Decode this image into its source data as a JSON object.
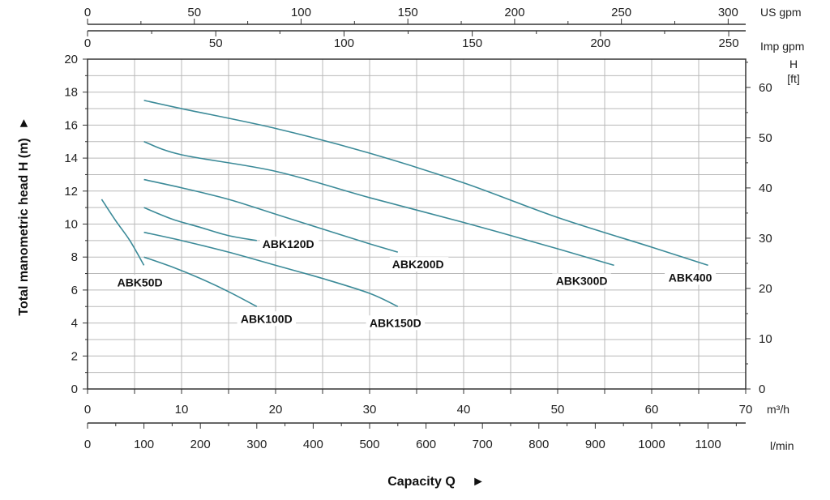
{
  "chart_data": {
    "type": "line",
    "x_unit": "m³/h",
    "xlim": [
      0,
      70
    ],
    "x_ticks": [
      0,
      10,
      20,
      30,
      40,
      50,
      60,
      70
    ],
    "y_unit": "m",
    "ylim": [
      0,
      20
    ],
    "y_ticks": [
      0,
      2,
      4,
      6,
      8,
      10,
      12,
      14,
      16,
      18,
      20
    ],
    "grid": true,
    "ylabel": "Total manometric head H (m)",
    "ylabel_arrow": "►",
    "xlabel": "Capacity Q",
    "xlabel_arrow": "►",
    "secondary_axes": {
      "top1": {
        "unit": "US gpm",
        "ticks": [
          0,
          50,
          100,
          150,
          200,
          250,
          300
        ],
        "per_m3h": 4.403
      },
      "top2": {
        "unit": "Imp gpm",
        "ticks": [
          0,
          50,
          100,
          150,
          200,
          250
        ],
        "per_m3h": 3.666
      },
      "bottom2": {
        "unit": "l/min",
        "ticks": [
          0,
          100,
          200,
          300,
          400,
          500,
          600,
          700,
          800,
          900,
          1000,
          1100
        ],
        "per_m3h": 16.667
      },
      "right": {
        "unit_line1": "H",
        "unit_line2": "[ft]",
        "ticks": [
          0,
          10,
          20,
          30,
          40,
          50,
          60
        ],
        "per_m": 3.281
      }
    },
    "curve_color": "#3b8a98",
    "series": [
      {
        "name": "ABK50D",
        "x": [
          1.5,
          3,
          4.5,
          6.0
        ],
        "y": [
          11.5,
          10.2,
          9.0,
          7.5
        ]
      },
      {
        "name": "ABK100D",
        "x": [
          6,
          9,
          12,
          15,
          18
        ],
        "y": [
          8.0,
          7.4,
          6.7,
          5.9,
          5.0
        ]
      },
      {
        "name": "ABK120D",
        "x": [
          6,
          9,
          12,
          15,
          18
        ],
        "y": [
          11.0,
          10.3,
          9.8,
          9.3,
          9.0
        ]
      },
      {
        "name": "ABK150D",
        "x": [
          6,
          10,
          15,
          20,
          25,
          30,
          33
        ],
        "y": [
          9.5,
          9.0,
          8.3,
          7.5,
          6.7,
          5.8,
          5.0
        ]
      },
      {
        "name": "ABK200D",
        "x": [
          6,
          10,
          15,
          20,
          25,
          30,
          33
        ],
        "y": [
          12.7,
          12.2,
          11.5,
          10.6,
          9.7,
          8.8,
          8.3
        ]
      },
      {
        "name": "ABK300D",
        "x": [
          6,
          10,
          20,
          30,
          40,
          50,
          56
        ],
        "y": [
          15.0,
          14.2,
          13.2,
          11.6,
          10.1,
          8.5,
          7.5
        ]
      },
      {
        "name": "ABK400",
        "x": [
          6,
          10,
          20,
          30,
          40,
          50,
          60,
          66
        ],
        "y": [
          17.5,
          17.0,
          15.8,
          14.3,
          12.5,
          10.4,
          8.6,
          7.5
        ]
      }
    ]
  }
}
